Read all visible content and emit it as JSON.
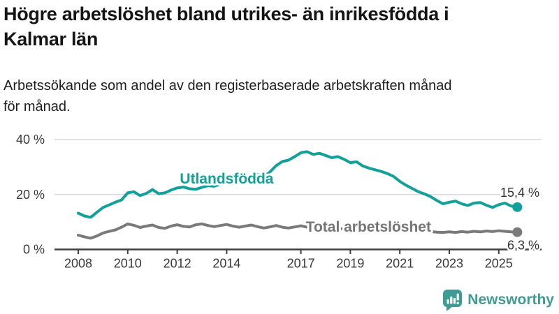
{
  "header": {
    "title_line1": "Högre arbetslöshet bland utrikes- än inrikesfödda i",
    "title_line2": "Kalmar län",
    "subtitle_line1": "Arbetssökande som andel av den registerbaserade arbetskraften månad",
    "subtitle_line2": "för månad."
  },
  "branding": {
    "logo_text": "Newsworthy",
    "logo_icon": "bar-chart-speech-bubble-icon",
    "logo_color": "#3f9c94"
  },
  "colors": {
    "accent_teal": "#12a19a",
    "line_gray": "#7a7a7a",
    "axis": "#3f3f3f",
    "gridline": "#d9d9d9",
    "tick_text": "#3a3a3a",
    "end_label_text": "#333333"
  },
  "chart_data": {
    "type": "line",
    "unit": "%",
    "grid": "horizontal",
    "legend_position": "inline-labels",
    "x_start": 2008.0,
    "x_step": 0.25,
    "xlim": [
      2007.05,
      2026.7
    ],
    "ylim": [
      0,
      44
    ],
    "yticks": [
      {
        "value": 0,
        "label": "0 %"
      },
      {
        "value": 20,
        "label": "20 %"
      },
      {
        "value": 40,
        "label": "40 %"
      }
    ],
    "xticks": [
      {
        "value": 2008,
        "label": "2008"
      },
      {
        "value": 2010,
        "label": "2010"
      },
      {
        "value": 2012,
        "label": "2012"
      },
      {
        "value": 2014,
        "label": "2014"
      },
      {
        "value": 2017,
        "label": "2017"
      },
      {
        "value": 2019,
        "label": "2019"
      },
      {
        "value": 2021,
        "label": "2021"
      },
      {
        "value": 2023,
        "label": "2023"
      },
      {
        "value": 2025,
        "label": "2025"
      }
    ],
    "series": [
      {
        "name": "Utlandsfödda",
        "color": "#12a19a",
        "label_color": "#12a19a",
        "label_x": 2014.0,
        "label_y": 24.0,
        "label_anchor": "middle",
        "end_label": "15,4 %",
        "end_label_dy": -15,
        "values": [
          13.2,
          12.2,
          11.7,
          13.5,
          15.3,
          16.2,
          17.2,
          18.0,
          20.6,
          21.0,
          19.6,
          20.4,
          21.8,
          20.3,
          20.6,
          21.6,
          22.4,
          22.7,
          22.1,
          21.9,
          22.6,
          23.2,
          23.0,
          23.8,
          24.4,
          24.0,
          24.8,
          25.4,
          26.2,
          27.3,
          26.4,
          28.2,
          30.5,
          32.0,
          32.5,
          33.8,
          35.2,
          35.6,
          34.6,
          35.0,
          34.2,
          33.4,
          33.8,
          32.8,
          31.6,
          31.9,
          30.4,
          29.6,
          29.0,
          28.4,
          27.6,
          26.6,
          24.8,
          23.4,
          22.2,
          21.0,
          20.2,
          19.2,
          17.8,
          16.6,
          17.2,
          17.6,
          16.6,
          16.0,
          16.9,
          17.1,
          16.1,
          15.3,
          16.3,
          16.9,
          15.8,
          15.4
        ]
      },
      {
        "name": "Total arbetslöshet",
        "color": "#7a7a7a",
        "label_color": "#757575",
        "label_x": 2017.2,
        "label_y": 6.5,
        "label_anchor": "start",
        "end_label": "6,3 %",
        "end_label_dy": 25,
        "values": [
          5.2,
          4.6,
          4.1,
          4.9,
          6.0,
          6.6,
          7.1,
          8.1,
          9.3,
          8.8,
          8.0,
          8.5,
          8.9,
          8.0,
          7.7,
          8.5,
          9.0,
          8.4,
          8.2,
          9.0,
          9.3,
          8.7,
          8.3,
          8.7,
          9.1,
          8.5,
          8.1,
          8.5,
          8.9,
          8.3,
          7.8,
          8.2,
          8.7,
          8.1,
          7.8,
          8.2,
          8.6,
          8.1,
          7.8,
          8.0,
          8.2,
          7.7,
          7.4,
          7.6,
          7.8,
          7.3,
          7.1,
          7.4,
          7.7,
          8.4,
          8.7,
          8.3,
          8.1,
          7.7,
          7.3,
          7.0,
          6.8,
          6.5,
          6.3,
          6.2,
          6.4,
          6.2,
          6.5,
          6.3,
          6.6,
          6.4,
          6.7,
          6.5,
          6.8,
          6.6,
          6.4,
          6.3
        ]
      }
    ]
  }
}
